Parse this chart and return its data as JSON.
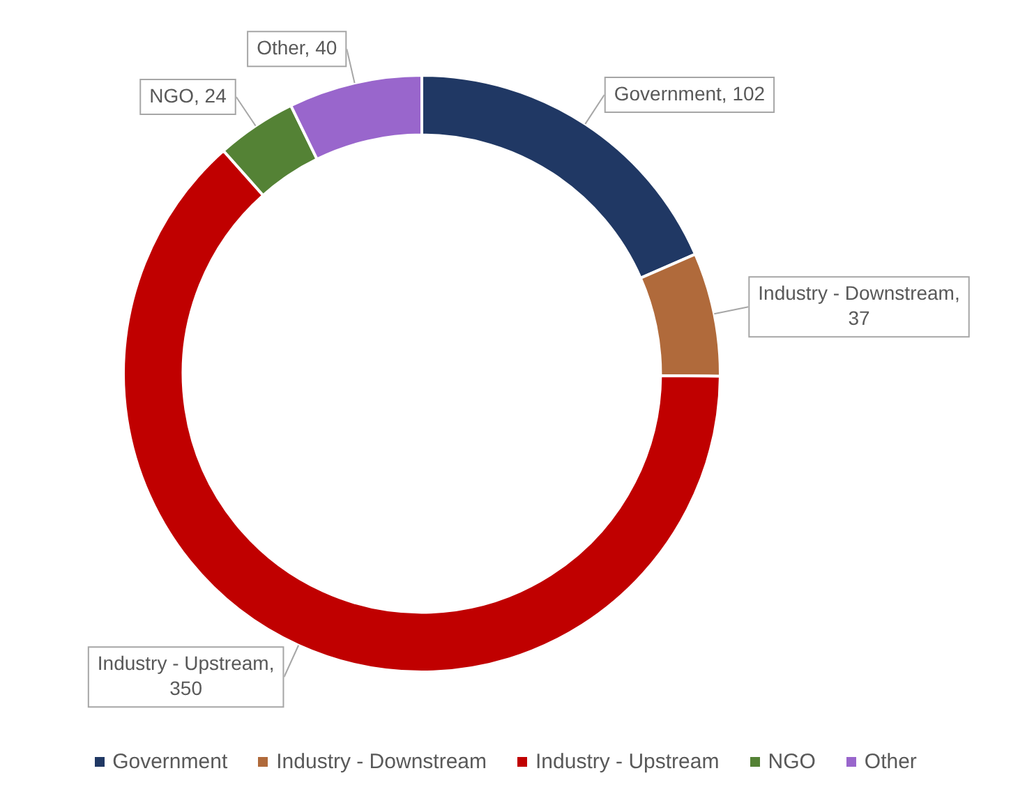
{
  "chart_data": {
    "type": "donut",
    "categories": [
      "Government",
      "Industry - Downstream",
      "Industry - Upstream",
      "NGO",
      "Other"
    ],
    "values": [
      102,
      37,
      350,
      24,
      40
    ],
    "colors": [
      "#203864",
      "#b06a3b",
      "#c00000",
      "#548235",
      "#9966cc"
    ],
    "data_labels": true,
    "value_labels": [
      "Government, 102",
      "Industry - Downstream, 37",
      "Industry - Upstream, 350",
      "NGO, 24",
      "Other, 40"
    ],
    "legend": "bottom"
  }
}
